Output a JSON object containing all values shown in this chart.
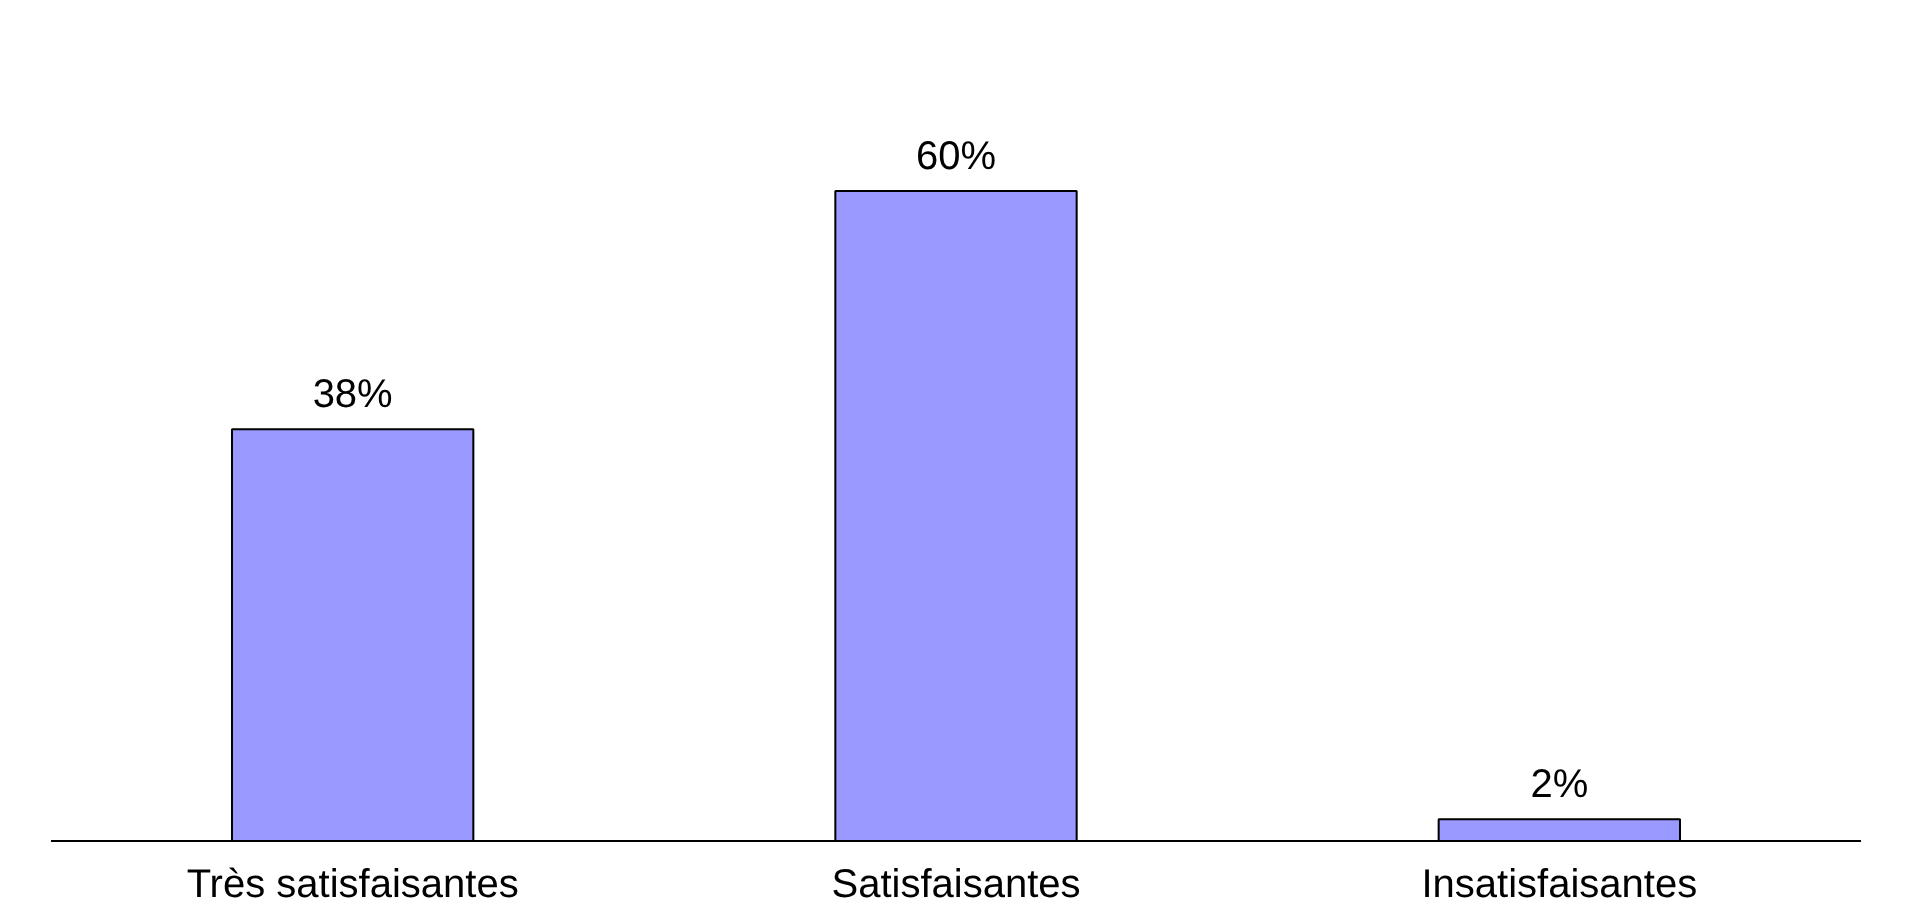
{
  "chart_data": {
    "type": "bar",
    "categories": [
      "Très satisfaisantes",
      "Satisfaisantes",
      "Insatisfaisantes"
    ],
    "values": [
      38,
      60,
      2
    ],
    "value_labels": [
      "38%",
      "60%",
      "2%"
    ],
    "color": "#9999ff",
    "grid": false
  }
}
